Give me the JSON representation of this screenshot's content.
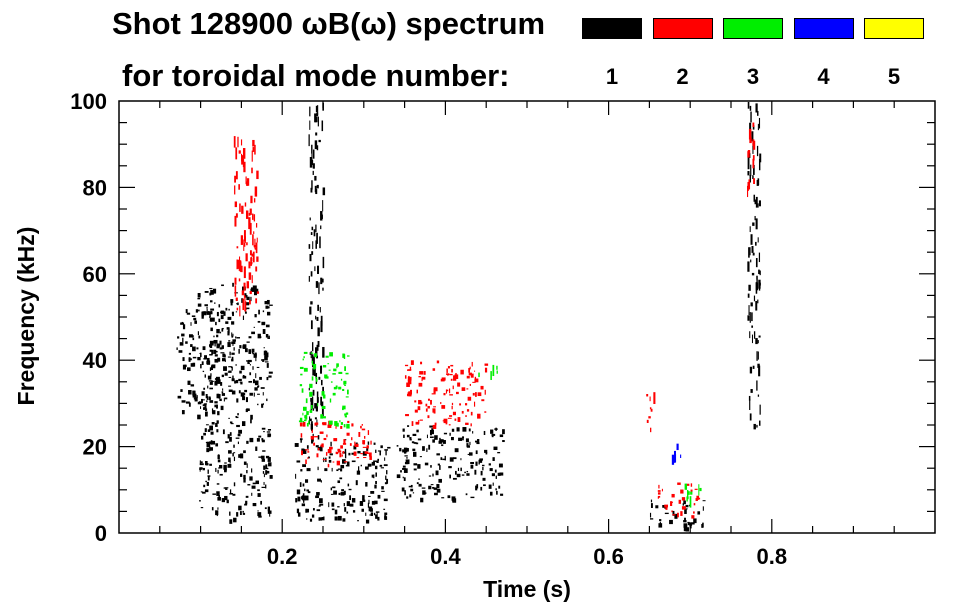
{
  "chart_data": {
    "type": "heatmap",
    "title_line1": "Shot 128900 ωB(ω) spectrum",
    "title_line2": "for toroidal mode number:",
    "xlabel": "Time (s)",
    "ylabel": "Frequency (kHz)",
    "xlim": [
      0.0,
      1.0
    ],
    "ylim": [
      0,
      100
    ],
    "x_ticks": [
      0.2,
      0.4,
      0.6,
      0.8
    ],
    "x_tick_labels": [
      "0.2",
      "0.4",
      "0.6",
      "0.8"
    ],
    "y_ticks": [
      0,
      20,
      40,
      60,
      80,
      100
    ],
    "y_tick_labels": [
      "0",
      "20",
      "40",
      "60",
      "80",
      "100"
    ],
    "grid": false,
    "legend": [
      {
        "label": "1",
        "color": "#000000"
      },
      {
        "label": "2",
        "color": "#ff0000"
      },
      {
        "label": "3",
        "color": "#00ee00"
      },
      {
        "label": "4",
        "color": "#0000ff"
      },
      {
        "label": "5",
        "color": "#ffff00"
      }
    ],
    "regions": [
      {
        "mode": 1,
        "t": [
          0.07,
          0.14
        ],
        "f": [
          28,
          52
        ]
      },
      {
        "mode": 1,
        "t": [
          0.095,
          0.185
        ],
        "f": [
          3,
          58
        ]
      },
      {
        "mode": 1,
        "t": [
          0.215,
          0.33
        ],
        "f": [
          3,
          22
        ]
      },
      {
        "mode": 1,
        "t": [
          0.232,
          0.25
        ],
        "f": [
          22,
          100
        ]
      },
      {
        "mode": 1,
        "t": [
          0.34,
          0.47
        ],
        "f": [
          8,
          25
        ]
      },
      {
        "mode": 1,
        "t": [
          0.65,
          0.72
        ],
        "f": [
          1,
          8
        ]
      },
      {
        "mode": 1,
        "t": [
          0.77,
          0.785
        ],
        "f": [
          25,
          100
        ]
      },
      {
        "mode": 2,
        "t": [
          0.14,
          0.17
        ],
        "f": [
          52,
          92
        ]
      },
      {
        "mode": 2,
        "t": [
          0.22,
          0.31
        ],
        "f": [
          16,
          26
        ]
      },
      {
        "mode": 2,
        "t": [
          0.35,
          0.45
        ],
        "f": [
          25,
          40
        ]
      },
      {
        "mode": 2,
        "t": [
          0.645,
          0.655
        ],
        "f": [
          24,
          34
        ]
      },
      {
        "mode": 2,
        "t": [
          0.66,
          0.71
        ],
        "f": [
          4,
          12
        ]
      },
      {
        "mode": 2,
        "t": [
          0.768,
          0.778
        ],
        "f": [
          80,
          96
        ]
      },
      {
        "mode": 3,
        "t": [
          0.22,
          0.28
        ],
        "f": [
          25,
          42
        ]
      },
      {
        "mode": 3,
        "t": [
          0.44,
          0.47
        ],
        "f": [
          37,
          39
        ]
      },
      {
        "mode": 3,
        "t": [
          0.69,
          0.72
        ],
        "f": [
          8,
          12
        ]
      },
      {
        "mode": 4,
        "t": [
          0.675,
          0.69
        ],
        "f": [
          18,
          22
        ]
      }
    ]
  }
}
